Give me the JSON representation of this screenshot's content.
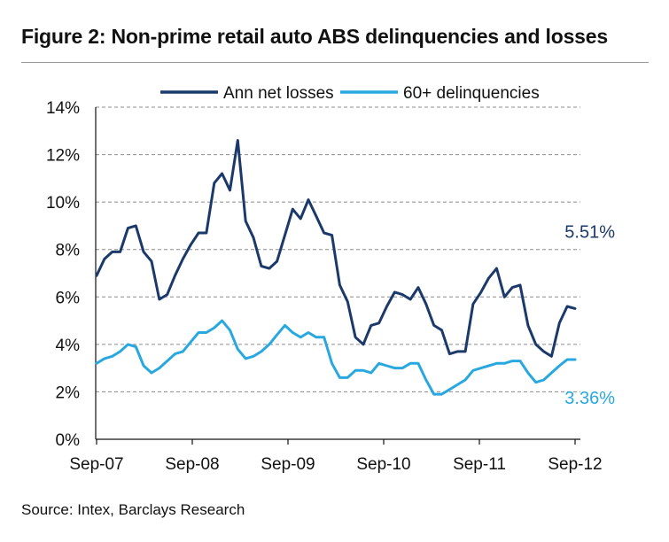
{
  "figure": {
    "title": "Figure 2: Non-prime retail auto ABS delinquencies and losses",
    "source": "Source: Intex, Barclays Research"
  },
  "chart_data": {
    "type": "line",
    "title": "",
    "xlabel": "",
    "ylabel": "",
    "ylim": [
      0,
      14
    ],
    "y_ticks": [
      "0%",
      "2%",
      "4%",
      "6%",
      "8%",
      "10%",
      "12%",
      "14%"
    ],
    "x_ticks": [
      "Sep-07",
      "Sep-08",
      "Sep-09",
      "Sep-10",
      "Sep-11",
      "Sep-12"
    ],
    "x_start": "Sep-07",
    "x_end": "Sep-12",
    "grid": "horizontal dashed",
    "legend_position": "top",
    "series": [
      {
        "name": "Ann net losses",
        "color": "#1b3a6b",
        "end_label": "5.51%",
        "values": [
          6.9,
          7.6,
          7.9,
          7.9,
          8.9,
          9.0,
          7.9,
          7.5,
          5.9,
          6.1,
          6.9,
          7.6,
          8.2,
          8.7,
          8.7,
          10.8,
          11.2,
          10.5,
          12.6,
          9.2,
          8.5,
          7.3,
          7.2,
          7.5,
          8.6,
          9.7,
          9.3,
          10.1,
          9.4,
          8.7,
          8.6,
          6.5,
          5.8,
          4.3,
          4.0,
          4.8,
          4.9,
          5.6,
          6.2,
          6.1,
          5.9,
          6.4,
          5.7,
          4.8,
          4.6,
          3.6,
          3.7,
          3.7,
          5.7,
          6.2,
          6.8,
          7.2,
          6.0,
          6.4,
          6.5,
          4.8,
          4.0,
          3.7,
          3.5,
          4.9,
          5.6,
          5.51
        ]
      },
      {
        "name": "60+ delinquencies",
        "color": "#29a8e0",
        "end_label": "3.36%",
        "values": [
          3.2,
          3.4,
          3.5,
          3.7,
          4.0,
          3.9,
          3.1,
          2.8,
          3.0,
          3.3,
          3.6,
          3.7,
          4.1,
          4.5,
          4.5,
          4.7,
          5.0,
          4.6,
          3.8,
          3.4,
          3.5,
          3.7,
          4.0,
          4.4,
          4.8,
          4.5,
          4.3,
          4.5,
          4.3,
          4.3,
          3.2,
          2.6,
          2.6,
          2.9,
          2.9,
          2.8,
          3.2,
          3.1,
          3.0,
          3.0,
          3.2,
          3.2,
          2.5,
          1.9,
          1.9,
          2.1,
          2.3,
          2.5,
          2.9,
          3.0,
          3.1,
          3.2,
          3.2,
          3.3,
          3.3,
          2.8,
          2.4,
          2.5,
          2.8,
          3.1,
          3.36,
          3.36
        ]
      }
    ]
  }
}
